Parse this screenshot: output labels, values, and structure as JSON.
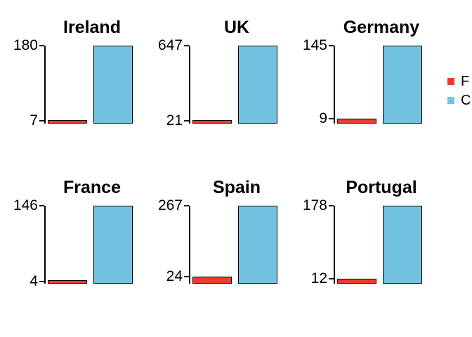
{
  "chart_data": {
    "type": "bar",
    "layout": {
      "rows": 2,
      "cols": 3,
      "grid": false,
      "legend_position": "right-edge-truncated"
    },
    "series": [
      {
        "name": "F",
        "color": "#EF3A2C"
      },
      {
        "name": "C",
        "color": "#74C2E2"
      }
    ],
    "panels": [
      {
        "title": "Ireland",
        "values": [
          7,
          180
        ],
        "yticks": [
          7,
          180
        ],
        "ylim": [
          0,
          180
        ]
      },
      {
        "title": "UK",
        "values": [
          21,
          647
        ],
        "yticks": [
          21,
          647
        ],
        "ylim": [
          0,
          647
        ]
      },
      {
        "title": "Germany",
        "values": [
          9,
          145
        ],
        "yticks": [
          9,
          145
        ],
        "ylim": [
          0,
          145
        ]
      },
      {
        "title": "France",
        "values": [
          4,
          146
        ],
        "yticks": [
          4,
          146
        ],
        "ylim": [
          0,
          146
        ]
      },
      {
        "title": "Spain",
        "values": [
          24,
          267
        ],
        "yticks": [
          24,
          267
        ],
        "ylim": [
          0,
          267
        ]
      },
      {
        "title": "Portugal",
        "values": [
          12,
          178
        ],
        "yticks": [
          12,
          178
        ],
        "ylim": [
          0,
          178
        ]
      }
    ],
    "legend": {
      "items": [
        {
          "label": "F",
          "color": "#EF3A2C",
          "truncated": true
        },
        {
          "label": "C",
          "color": "#74C2E2",
          "truncated": true
        }
      ]
    },
    "colors": {
      "bar_border": "#000000",
      "axis": "#000000",
      "text": "#000000",
      "background": "#FFFFFF"
    }
  }
}
